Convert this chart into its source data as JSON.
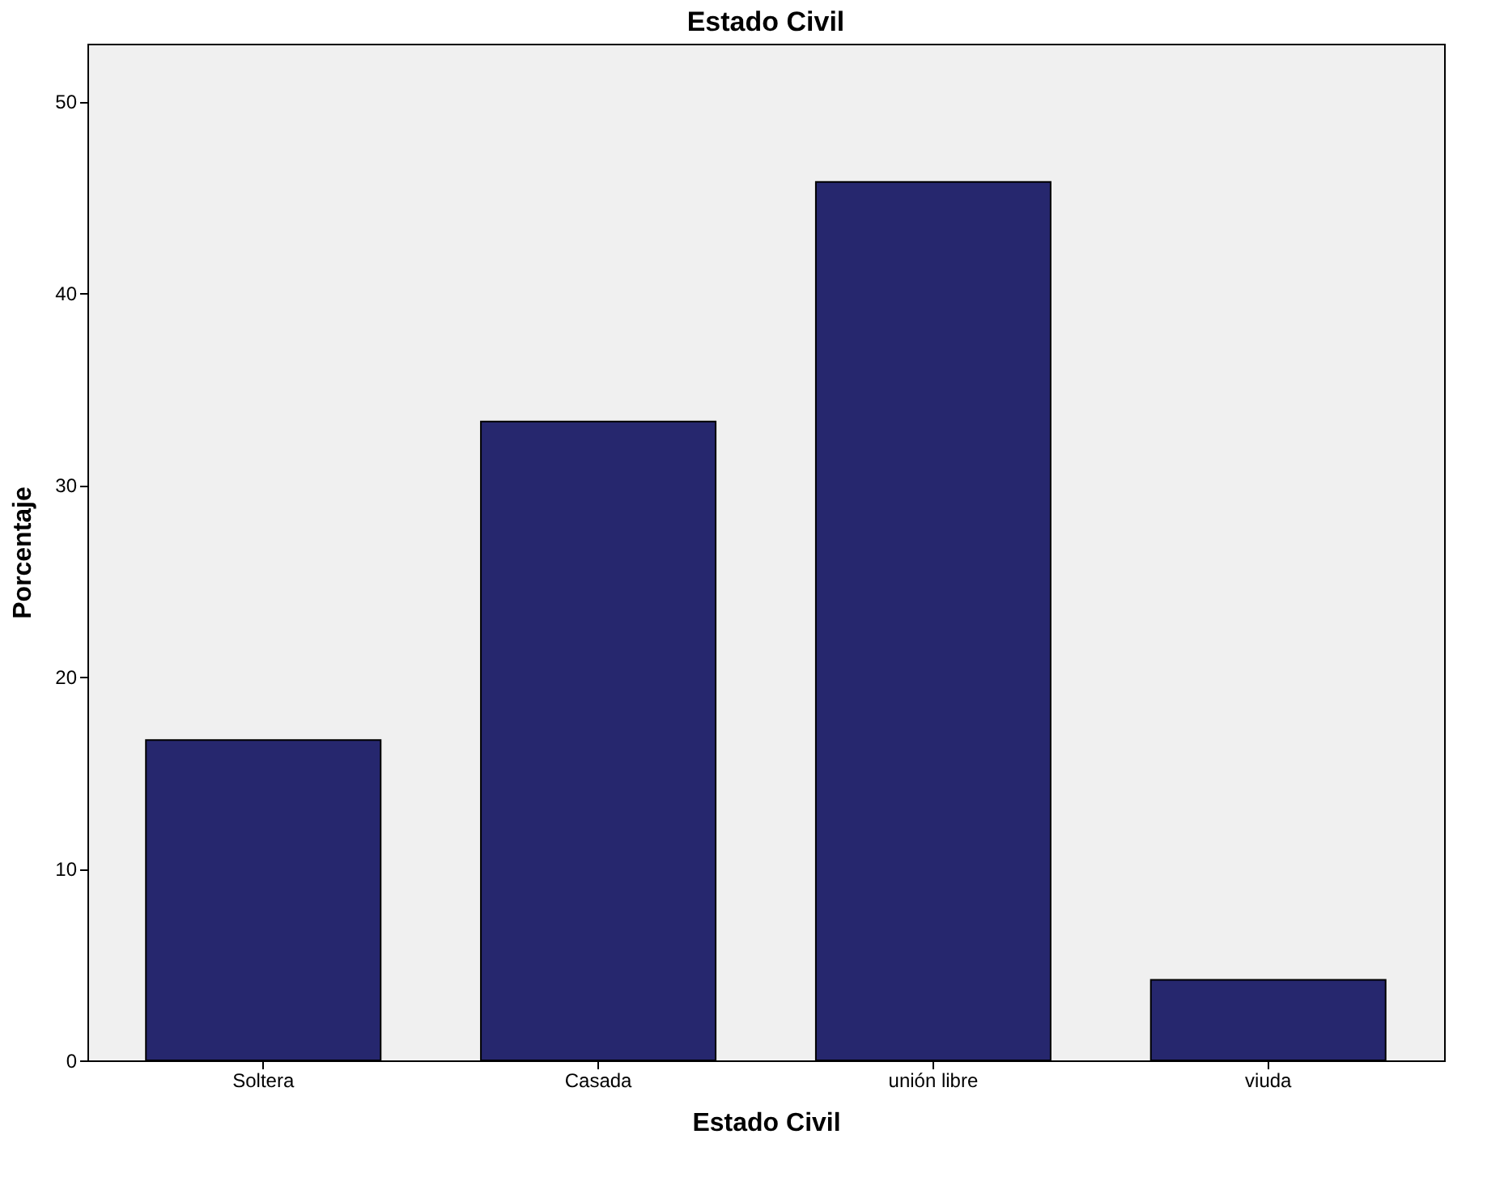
{
  "chart_data": {
    "type": "bar",
    "title": "Estado Civil",
    "xlabel": "Estado Civil",
    "ylabel": "Porcentaje",
    "categories": [
      "Soltera",
      "Casada",
      "unión libre",
      "viuda"
    ],
    "values": [
      16.7,
      33.3,
      45.8,
      4.2
    ],
    "color": "#26276e",
    "ylim": [
      0,
      53
    ],
    "yticks": [
      0,
      10,
      20,
      30,
      40,
      50
    ],
    "grid": false
  }
}
